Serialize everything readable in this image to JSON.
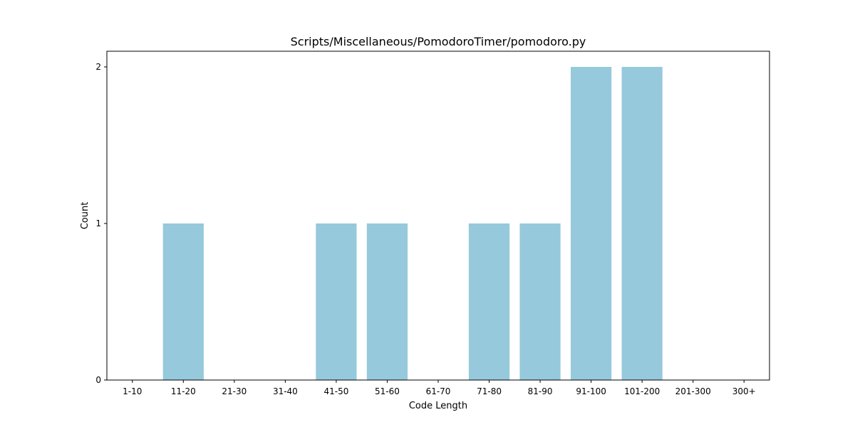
{
  "chart_data": {
    "type": "bar",
    "title": "Scripts/Miscellaneous/PomodoroTimer/pomodoro.py",
    "xlabel": "Code Length",
    "ylabel": "Count",
    "categories": [
      "1-10",
      "11-20",
      "21-30",
      "31-40",
      "41-50",
      "51-60",
      "61-70",
      "71-80",
      "81-90",
      "91-100",
      "101-200",
      "201-300",
      "300+"
    ],
    "values": [
      0,
      1,
      0,
      0,
      1,
      1,
      0,
      1,
      1,
      2,
      2,
      0,
      0
    ],
    "yticks": [
      "0",
      "1",
      "2"
    ],
    "ylim": [
      0,
      2.1
    ],
    "grid": false,
    "bar_color": "#96c9dc"
  }
}
